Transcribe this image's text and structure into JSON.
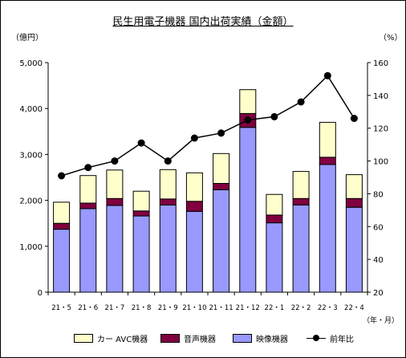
{
  "header": {
    "title": "民生用電子機器 国内出荷実績（金額）",
    "left_unit": "（億円）",
    "right_unit": "（%）",
    "x_unit": "（年・月）"
  },
  "colors": {
    "car_avc": "#FFFFCC",
    "audio": "#800040",
    "video": "#9999FF",
    "line": "#000000"
  },
  "chart_data": {
    "type": "bar",
    "stacked": true,
    "categories": [
      "21・5",
      "21・6",
      "21・7",
      "21・8",
      "21・9",
      "21・10",
      "21・11",
      "21・12",
      "22・1",
      "22・2",
      "22・3",
      "22・4"
    ],
    "series": [
      {
        "name": "映像機器",
        "kind": "bar",
        "axis": "left",
        "color": "#9999FF",
        "values": [
          1370,
          1820,
          1890,
          1660,
          1900,
          1760,
          2230,
          3590,
          1510,
          1900,
          2780,
          1850
        ]
      },
      {
        "name": "音声機器",
        "kind": "bar",
        "axis": "left",
        "color": "#800040",
        "values": [
          130,
          120,
          150,
          110,
          130,
          220,
          140,
          300,
          170,
          140,
          160,
          190
        ]
      },
      {
        "name": "カー AVC機器",
        "kind": "bar",
        "axis": "left",
        "color": "#FFFFCC",
        "values": [
          460,
          600,
          620,
          430,
          640,
          620,
          650,
          520,
          450,
          590,
          760,
          520
        ]
      },
      {
        "name": "前年比",
        "kind": "line",
        "axis": "right",
        "color": "#000000",
        "values": [
          91,
          96,
          100,
          111,
          100,
          114,
          117,
          125,
          127,
          136,
          152,
          126
        ]
      }
    ],
    "left_axis": {
      "min": 0,
      "max": 5000,
      "ticks": [
        "0",
        "1,000",
        "2,000",
        "3,000",
        "4,000",
        "5,000"
      ]
    },
    "right_axis": {
      "min": 20,
      "max": 160,
      "ticks": [
        "20",
        "40",
        "60",
        "80",
        "100",
        "120",
        "140",
        "160"
      ]
    },
    "grid": false,
    "legend_position": "bottom"
  },
  "legend": [
    {
      "label": "カー AVC機器",
      "color": "#FFFFCC"
    },
    {
      "label": "音声機器",
      "color": "#800040"
    },
    {
      "label": "映像機器",
      "color": "#9999FF"
    },
    {
      "label": "前年比",
      "color": "#000000"
    }
  ]
}
